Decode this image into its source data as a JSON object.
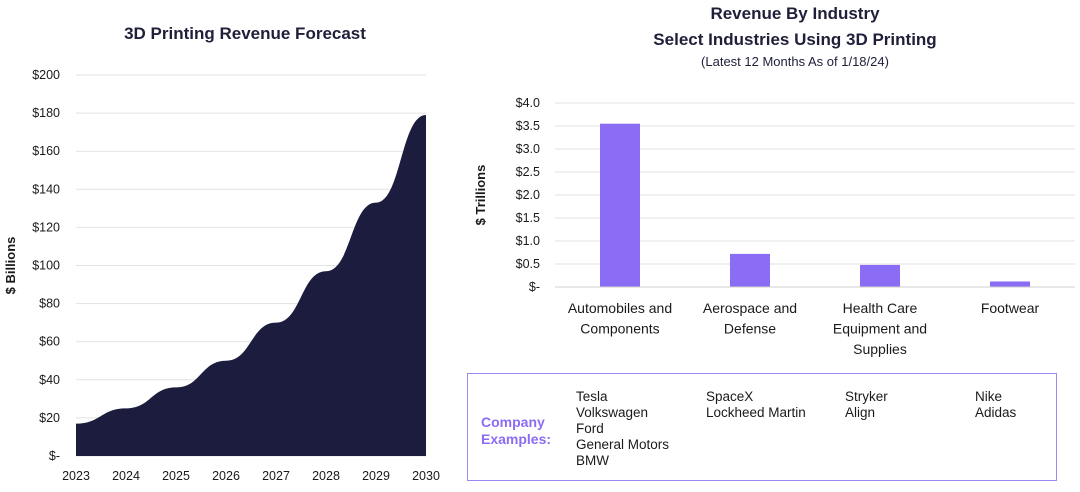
{
  "chart_data": [
    {
      "type": "area",
      "title": "3D Printing Revenue Forecast",
      "xlabel": "",
      "ylabel": "$ Billions",
      "x": [
        "2023",
        "2024",
        "2025",
        "2026",
        "2027",
        "2028",
        "2029",
        "2030"
      ],
      "values": [
        17,
        25,
        36,
        50,
        70,
        97,
        133,
        179
      ],
      "ylim": [
        0,
        200
      ],
      "yticks": [
        "$-",
        "$20",
        "$40",
        "$60",
        "$80",
        "$100",
        "$120",
        "$140",
        "$160",
        "$180",
        "$200"
      ],
      "color": "#1c1c3e",
      "grid": true
    },
    {
      "type": "bar",
      "title": "Revenue By Industry",
      "subtitle": "Select Industries Using 3D Printing",
      "note": "(Latest 12 Months As of 1/18/24)",
      "xlabel": "",
      "ylabel": "$ Trillions",
      "categories": [
        [
          "Automobiles and",
          "Components"
        ],
        [
          "Aerospace and",
          "Defense"
        ],
        [
          "Health Care",
          "Equipment and",
          "Supplies"
        ],
        [
          "Footwear"
        ]
      ],
      "values": [
        3.55,
        0.72,
        0.48,
        0.12
      ],
      "ylim": [
        0,
        4.0
      ],
      "yticks": [
        "$-",
        "$0.5",
        "$1.0",
        "$1.5",
        "$2.0",
        "$2.5",
        "$3.0",
        "$3.5",
        "$4.0"
      ],
      "color": "#8b6cf5",
      "grid": true
    }
  ],
  "companies": {
    "label": [
      "Company",
      "Examples:"
    ],
    "columns": [
      [
        "Tesla",
        "Volkswagen",
        "Ford",
        "General Motors",
        "BMW"
      ],
      [
        "SpaceX",
        "Lockheed Martin"
      ],
      [
        "Stryker",
        "Align"
      ],
      [
        "Nike",
        "Adidas"
      ]
    ]
  }
}
